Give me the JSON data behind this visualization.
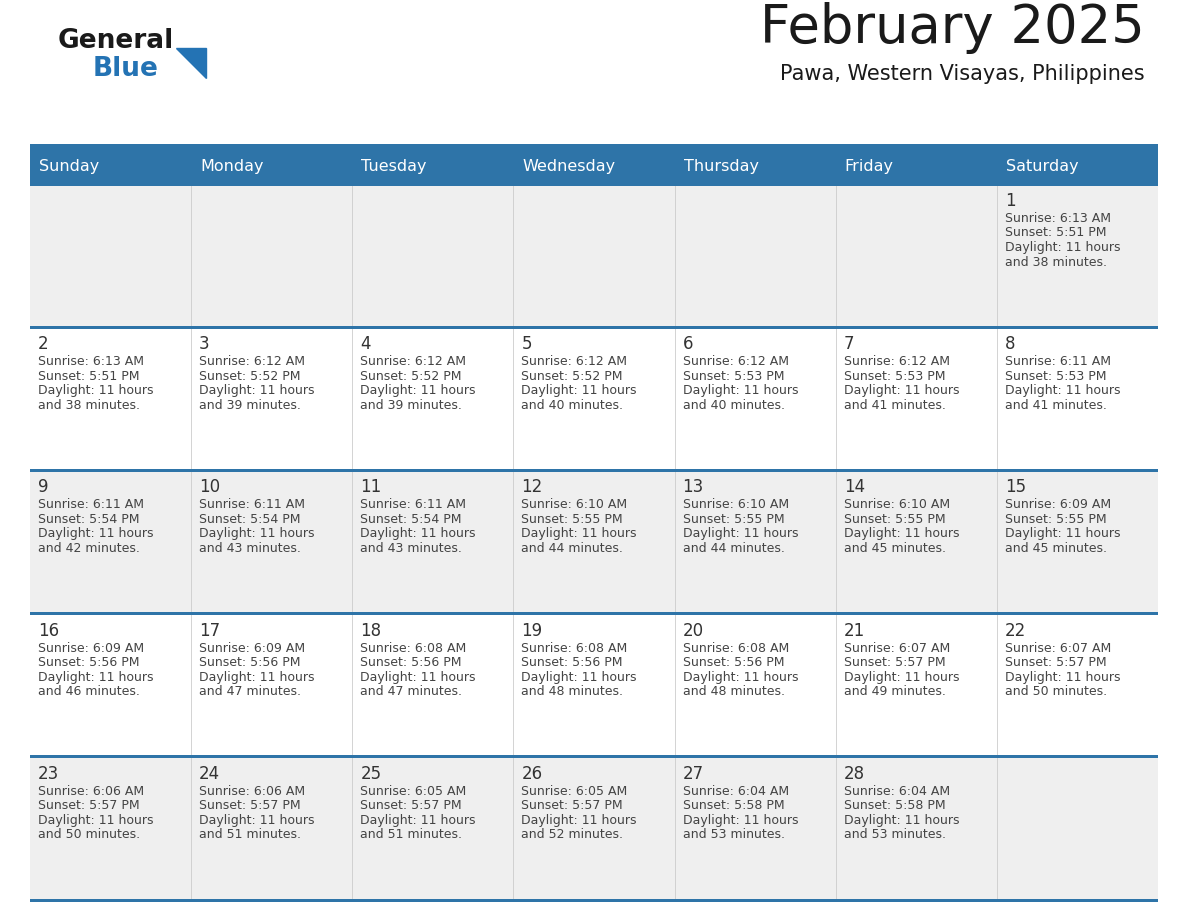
{
  "title": "February 2025",
  "subtitle": "Pawa, Western Visayas, Philippines",
  "header_bg_color": "#2E74A8",
  "header_text_color": "#FFFFFF",
  "day_names": [
    "Sunday",
    "Monday",
    "Tuesday",
    "Wednesday",
    "Thursday",
    "Friday",
    "Saturday"
  ],
  "cell_bg_row0": "#EFEFEF",
  "cell_bg_row1": "#EFEFEF",
  "cell_bg_row2": "#EFEFEF",
  "cell_bg_row3": "#EFEFEF",
  "cell_bg_row4": "#EFEFEF",
  "grid_line_color": "#2E74A8",
  "date_text_color": "#333333",
  "info_text_color": "#444444",
  "title_color": "#1a1a1a",
  "subtitle_color": "#1a1a1a",
  "logo_general_color": "#1a1a1a",
  "logo_blue_color": "#2473B4",
  "calendar_data": [
    [
      null,
      null,
      null,
      null,
      null,
      null,
      {
        "day": 1,
        "sunrise": "6:13 AM",
        "sunset": "5:51 PM",
        "daylight_line1": "Daylight: 11 hours",
        "daylight_line2": "and 38 minutes."
      }
    ],
    [
      {
        "day": 2,
        "sunrise": "6:13 AM",
        "sunset": "5:51 PM",
        "daylight_line1": "Daylight: 11 hours",
        "daylight_line2": "and 38 minutes."
      },
      {
        "day": 3,
        "sunrise": "6:12 AM",
        "sunset": "5:52 PM",
        "daylight_line1": "Daylight: 11 hours",
        "daylight_line2": "and 39 minutes."
      },
      {
        "day": 4,
        "sunrise": "6:12 AM",
        "sunset": "5:52 PM",
        "daylight_line1": "Daylight: 11 hours",
        "daylight_line2": "and 39 minutes."
      },
      {
        "day": 5,
        "sunrise": "6:12 AM",
        "sunset": "5:52 PM",
        "daylight_line1": "Daylight: 11 hours",
        "daylight_line2": "and 40 minutes."
      },
      {
        "day": 6,
        "sunrise": "6:12 AM",
        "sunset": "5:53 PM",
        "daylight_line1": "Daylight: 11 hours",
        "daylight_line2": "and 40 minutes."
      },
      {
        "day": 7,
        "sunrise": "6:12 AM",
        "sunset": "5:53 PM",
        "daylight_line1": "Daylight: 11 hours",
        "daylight_line2": "and 41 minutes."
      },
      {
        "day": 8,
        "sunrise": "6:11 AM",
        "sunset": "5:53 PM",
        "daylight_line1": "Daylight: 11 hours",
        "daylight_line2": "and 41 minutes."
      }
    ],
    [
      {
        "day": 9,
        "sunrise": "6:11 AM",
        "sunset": "5:54 PM",
        "daylight_line1": "Daylight: 11 hours",
        "daylight_line2": "and 42 minutes."
      },
      {
        "day": 10,
        "sunrise": "6:11 AM",
        "sunset": "5:54 PM",
        "daylight_line1": "Daylight: 11 hours",
        "daylight_line2": "and 43 minutes."
      },
      {
        "day": 11,
        "sunrise": "6:11 AM",
        "sunset": "5:54 PM",
        "daylight_line1": "Daylight: 11 hours",
        "daylight_line2": "and 43 minutes."
      },
      {
        "day": 12,
        "sunrise": "6:10 AM",
        "sunset": "5:55 PM",
        "daylight_line1": "Daylight: 11 hours",
        "daylight_line2": "and 44 minutes."
      },
      {
        "day": 13,
        "sunrise": "6:10 AM",
        "sunset": "5:55 PM",
        "daylight_line1": "Daylight: 11 hours",
        "daylight_line2": "and 44 minutes."
      },
      {
        "day": 14,
        "sunrise": "6:10 AM",
        "sunset": "5:55 PM",
        "daylight_line1": "Daylight: 11 hours",
        "daylight_line2": "and 45 minutes."
      },
      {
        "day": 15,
        "sunrise": "6:09 AM",
        "sunset": "5:55 PM",
        "daylight_line1": "Daylight: 11 hours",
        "daylight_line2": "and 45 minutes."
      }
    ],
    [
      {
        "day": 16,
        "sunrise": "6:09 AM",
        "sunset": "5:56 PM",
        "daylight_line1": "Daylight: 11 hours",
        "daylight_line2": "and 46 minutes."
      },
      {
        "day": 17,
        "sunrise": "6:09 AM",
        "sunset": "5:56 PM",
        "daylight_line1": "Daylight: 11 hours",
        "daylight_line2": "and 47 minutes."
      },
      {
        "day": 18,
        "sunrise": "6:08 AM",
        "sunset": "5:56 PM",
        "daylight_line1": "Daylight: 11 hours",
        "daylight_line2": "and 47 minutes."
      },
      {
        "day": 19,
        "sunrise": "6:08 AM",
        "sunset": "5:56 PM",
        "daylight_line1": "Daylight: 11 hours",
        "daylight_line2": "and 48 minutes."
      },
      {
        "day": 20,
        "sunrise": "6:08 AM",
        "sunset": "5:56 PM",
        "daylight_line1": "Daylight: 11 hours",
        "daylight_line2": "and 48 minutes."
      },
      {
        "day": 21,
        "sunrise": "6:07 AM",
        "sunset": "5:57 PM",
        "daylight_line1": "Daylight: 11 hours",
        "daylight_line2": "and 49 minutes."
      },
      {
        "day": 22,
        "sunrise": "6:07 AM",
        "sunset": "5:57 PM",
        "daylight_line1": "Daylight: 11 hours",
        "daylight_line2": "and 50 minutes."
      }
    ],
    [
      {
        "day": 23,
        "sunrise": "6:06 AM",
        "sunset": "5:57 PM",
        "daylight_line1": "Daylight: 11 hours",
        "daylight_line2": "and 50 minutes."
      },
      {
        "day": 24,
        "sunrise": "6:06 AM",
        "sunset": "5:57 PM",
        "daylight_line1": "Daylight: 11 hours",
        "daylight_line2": "and 51 minutes."
      },
      {
        "day": 25,
        "sunrise": "6:05 AM",
        "sunset": "5:57 PM",
        "daylight_line1": "Daylight: 11 hours",
        "daylight_line2": "and 51 minutes."
      },
      {
        "day": 26,
        "sunrise": "6:05 AM",
        "sunset": "5:57 PM",
        "daylight_line1": "Daylight: 11 hours",
        "daylight_line2": "and 52 minutes."
      },
      {
        "day": 27,
        "sunrise": "6:04 AM",
        "sunset": "5:58 PM",
        "daylight_line1": "Daylight: 11 hours",
        "daylight_line2": "and 53 minutes."
      },
      {
        "day": 28,
        "sunrise": "6:04 AM",
        "sunset": "5:58 PM",
        "daylight_line1": "Daylight: 11 hours",
        "daylight_line2": "and 53 minutes."
      },
      null
    ]
  ]
}
